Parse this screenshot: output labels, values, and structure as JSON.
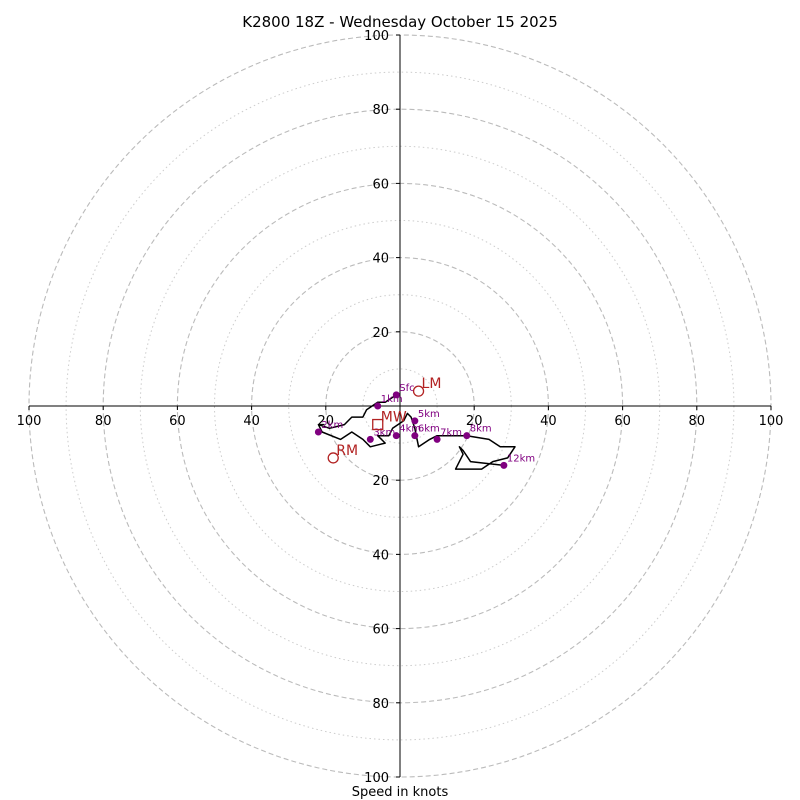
{
  "chart_data": {
    "type": "hodograph",
    "title": "K2800 18Z - Wednesday October 15 2025",
    "xlabel": "Speed in knots",
    "range": [
      -100,
      100
    ],
    "major_rings": [
      20,
      40,
      60,
      80,
      100
    ],
    "minor_rings": [
      10,
      30,
      50,
      70,
      90
    ],
    "axis_ticks": [
      {
        "value": -100,
        "label": "100"
      },
      {
        "value": -80,
        "label": "80"
      },
      {
        "value": -60,
        "label": "60"
      },
      {
        "value": -40,
        "label": "40"
      },
      {
        "value": -20,
        "label": "20"
      },
      {
        "value": 20,
        "label": "20"
      },
      {
        "value": 40,
        "label": "40"
      },
      {
        "value": 60,
        "label": "60"
      },
      {
        "value": 80,
        "label": "80"
      },
      {
        "value": 100,
        "label": "100"
      }
    ],
    "trace_color": "#000000",
    "trace": [
      [
        -1,
        3
      ],
      [
        -4,
        1
      ],
      [
        -6,
        1
      ],
      [
        -9,
        -1
      ],
      [
        -10,
        -3
      ],
      [
        -13,
        -3
      ],
      [
        -15,
        -5
      ],
      [
        -19,
        -6
      ],
      [
        -22,
        -5
      ],
      [
        -21,
        -7
      ],
      [
        -16,
        -9
      ],
      [
        -13,
        -7
      ],
      [
        -10,
        -9
      ],
      [
        -8,
        -11
      ],
      [
        -4,
        -10
      ],
      [
        -6,
        -8
      ],
      [
        -3,
        -8
      ],
      [
        -2,
        -6
      ],
      [
        1,
        -4
      ],
      [
        2,
        -2
      ],
      [
        3,
        -3
      ],
      [
        4,
        -6
      ],
      [
        5,
        -11
      ],
      [
        8,
        -9
      ],
      [
        10,
        -8
      ],
      [
        14,
        -8
      ],
      [
        18,
        -8
      ],
      [
        24,
        -9
      ],
      [
        27,
        -11
      ],
      [
        31,
        -11
      ],
      [
        29,
        -14
      ],
      [
        25,
        -15
      ],
      [
        22,
        -17
      ],
      [
        15,
        -17
      ],
      [
        17,
        -13
      ],
      [
        16,
        -11
      ],
      [
        17,
        -12
      ],
      [
        19,
        -15
      ],
      [
        28,
        -16
      ]
    ],
    "height_marker_color": "#800080",
    "height_markers": [
      {
        "label": "Sfc",
        "u": -1,
        "v": 3
      },
      {
        "label": "1km",
        "u": -6,
        "v": 0
      },
      {
        "label": "2km",
        "u": -22,
        "v": -7
      },
      {
        "label": "3km",
        "u": -8,
        "v": -9
      },
      {
        "label": "4km",
        "u": -1,
        "v": -8
      },
      {
        "label": "5km",
        "u": 4,
        "v": -4
      },
      {
        "label": "6km",
        "u": 4,
        "v": -8
      },
      {
        "label": "7km",
        "u": 10,
        "v": -9
      },
      {
        "label": "8km",
        "u": 18,
        "v": -8
      },
      {
        "label": "12km",
        "u": 28,
        "v": -16
      }
    ],
    "motion_color": "#b22222",
    "storm_motions": [
      {
        "label": "LM",
        "u": 5,
        "v": 4,
        "shape": "circle"
      },
      {
        "label": "MW",
        "u": -6,
        "v": -5,
        "shape": "square"
      },
      {
        "label": "RM",
        "u": -18,
        "v": -14,
        "shape": "circle"
      }
    ]
  }
}
